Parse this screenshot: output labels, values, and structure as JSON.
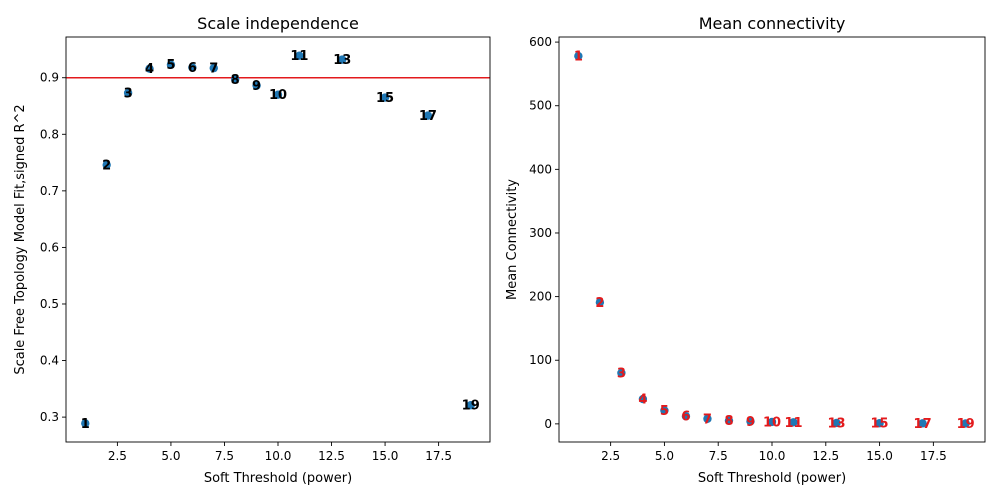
{
  "chart_data": [
    {
      "type": "scatter",
      "title": "Scale independence",
      "xlabel": "Soft Threshold (power)",
      "ylabel": "Scale Free Topology Model Fit,signed R^2",
      "xlim": [
        0.1,
        19.9
      ],
      "ylim": [
        0.256,
        0.972
      ],
      "xticks": [
        2.5,
        5.0,
        7.5,
        10.0,
        12.5,
        15.0,
        17.5
      ],
      "xtick_labels": [
        "2.5",
        "5.0",
        "7.5",
        "10.0",
        "12.5",
        "15.0",
        "17.5"
      ],
      "yticks": [
        0.3,
        0.4,
        0.5,
        0.6,
        0.7,
        0.8,
        0.9
      ],
      "ytick_labels": [
        "0.3",
        "0.4",
        "0.5",
        "0.6",
        "0.7",
        "0.8",
        "0.9"
      ],
      "hline": {
        "y": 0.9,
        "color": "#e31a1c"
      },
      "point_color": "#1f77b4",
      "label_color": "#000000",
      "points": [
        {
          "x": 1,
          "y": 0.289,
          "label": "1"
        },
        {
          "x": 2,
          "y": 0.746,
          "label": "2"
        },
        {
          "x": 3,
          "y": 0.873,
          "label": "3"
        },
        {
          "x": 4,
          "y": 0.916,
          "label": "4"
        },
        {
          "x": 5,
          "y": 0.923,
          "label": "5"
        },
        {
          "x": 6,
          "y": 0.918,
          "label": "6"
        },
        {
          "x": 7,
          "y": 0.917,
          "label": "7"
        },
        {
          "x": 8,
          "y": 0.897,
          "label": "8"
        },
        {
          "x": 9,
          "y": 0.886,
          "label": "9"
        },
        {
          "x": 10,
          "y": 0.87,
          "label": "10"
        },
        {
          "x": 11,
          "y": 0.939,
          "label": "11"
        },
        {
          "x": 13,
          "y": 0.932,
          "label": "13"
        },
        {
          "x": 15,
          "y": 0.865,
          "label": "15"
        },
        {
          "x": 17,
          "y": 0.833,
          "label": "17"
        },
        {
          "x": 19,
          "y": 0.321,
          "label": "19"
        }
      ]
    },
    {
      "type": "scatter",
      "title": "Mean connectivity",
      "xlabel": "Soft Threshold (power)",
      "ylabel": "Mean Connectivity",
      "xlim": [
        0.1,
        19.9
      ],
      "ylim": [
        -28.5,
        608
      ],
      "xticks": [
        2.5,
        5.0,
        7.5,
        10.0,
        12.5,
        15.0,
        17.5
      ],
      "xtick_labels": [
        "2.5",
        "5.0",
        "7.5",
        "10.0",
        "12.5",
        "15.0",
        "17.5"
      ],
      "yticks": [
        0,
        100,
        200,
        300,
        400,
        500,
        600
      ],
      "ytick_labels": [
        "0",
        "100",
        "200",
        "300",
        "400",
        "500",
        "600"
      ],
      "point_color": "#1f77b4",
      "label_color": "#e31a1c",
      "points": [
        {
          "x": 1,
          "y": 578,
          "label": "1"
        },
        {
          "x": 2,
          "y": 191,
          "label": "2"
        },
        {
          "x": 3,
          "y": 80,
          "label": "3"
        },
        {
          "x": 4,
          "y": 39,
          "label": "4"
        },
        {
          "x": 5,
          "y": 21,
          "label": "5"
        },
        {
          "x": 6,
          "y": 12,
          "label": "6"
        },
        {
          "x": 7,
          "y": 8,
          "label": "7"
        },
        {
          "x": 8,
          "y": 5,
          "label": "8"
        },
        {
          "x": 9,
          "y": 4,
          "label": "9"
        },
        {
          "x": 10,
          "y": 3,
          "label": "10"
        },
        {
          "x": 11,
          "y": 2.5,
          "label": "11"
        },
        {
          "x": 13,
          "y": 1.5,
          "label": "13"
        },
        {
          "x": 15,
          "y": 1,
          "label": "15"
        },
        {
          "x": 17,
          "y": 0.8,
          "label": "17"
        },
        {
          "x": 19,
          "y": 0.6,
          "label": "19"
        }
      ]
    }
  ]
}
